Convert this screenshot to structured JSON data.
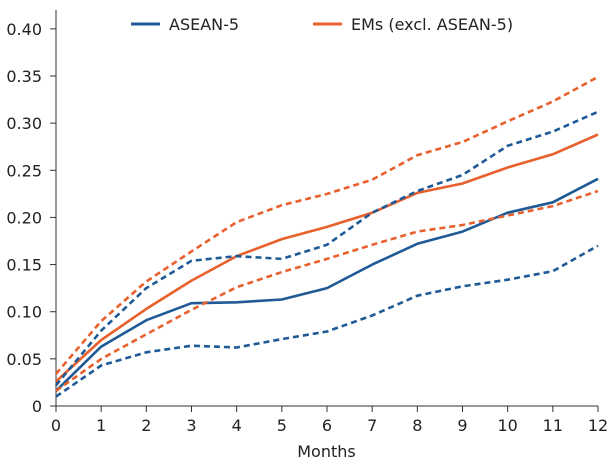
{
  "chart_data": {
    "type": "line",
    "xlabel": "Months",
    "ylabel": "",
    "x": [
      0,
      1,
      2,
      3,
      4,
      5,
      6,
      7,
      8,
      9,
      10,
      11,
      12
    ],
    "xlim": [
      0,
      12
    ],
    "ylim": [
      0,
      0.42
    ],
    "x_ticks": [
      "0",
      "1",
      "2",
      "3",
      "4",
      "5",
      "6",
      "7",
      "8",
      "9",
      "10",
      "11",
      "12"
    ],
    "y_ticks": [
      {
        "value": 0,
        "label": "0"
      },
      {
        "value": 0.05,
        "label": "0.05"
      },
      {
        "value": 0.1,
        "label": "0.10"
      },
      {
        "value": 0.15,
        "label": "0.15"
      },
      {
        "value": 0.2,
        "label": "0.20"
      },
      {
        "value": 0.25,
        "label": "0.25"
      },
      {
        "value": 0.3,
        "label": "0.30"
      },
      {
        "value": 0.35,
        "label": "0.35"
      },
      {
        "value": 0.4,
        "label": "0.40"
      }
    ],
    "grid": false,
    "legend_position": "top",
    "series": [
      {
        "name": "ASEAN-5",
        "color": "#1f5a96",
        "style": "solid",
        "values": [
          0.016,
          0.063,
          0.091,
          0.109,
          0.11,
          0.113,
          0.125,
          0.15,
          0.172,
          0.185,
          0.205,
          0.216,
          0.241
        ]
      },
      {
        "name": "EMs (excl. ASEAN-5)",
        "color": "#e8602c",
        "style": "solid",
        "values": [
          0.026,
          0.07,
          0.103,
          0.133,
          0.159,
          0.177,
          0.19,
          0.205,
          0.226,
          0.236,
          0.253,
          0.267,
          0.288
        ]
      },
      {
        "color": "#1f5a96",
        "style": "dashed",
        "values": [
          0.022,
          0.08,
          0.125,
          0.154,
          0.159,
          0.156,
          0.171,
          0.205,
          0.228,
          0.245,
          0.276,
          0.291,
          0.312
        ]
      },
      {
        "color": "#1f5a96",
        "style": "dashed",
        "values": [
          0.01,
          0.043,
          0.057,
          0.064,
          0.062,
          0.071,
          0.079,
          0.096,
          0.117,
          0.127,
          0.134,
          0.143,
          0.17
        ]
      },
      {
        "color": "#e8602c",
        "style": "dashed",
        "values": [
          0.034,
          0.09,
          0.132,
          0.164,
          0.195,
          0.213,
          0.225,
          0.24,
          0.266,
          0.28,
          0.302,
          0.323,
          0.349
        ]
      },
      {
        "color": "#e8602c",
        "style": "dashed",
        "values": [
          0.016,
          0.05,
          0.076,
          0.102,
          0.126,
          0.142,
          0.156,
          0.171,
          0.185,
          0.192,
          0.202,
          0.212,
          0.228
        ]
      }
    ]
  }
}
